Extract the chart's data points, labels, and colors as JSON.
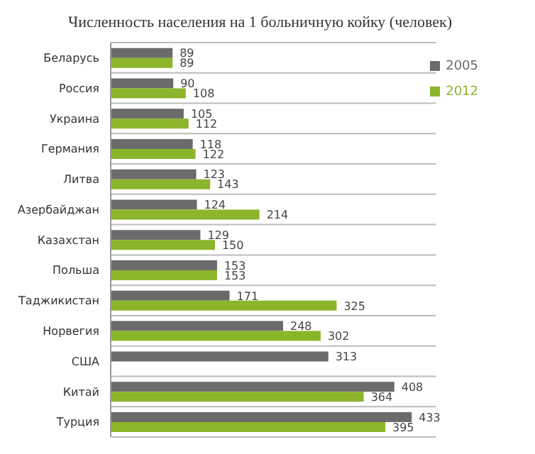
{
  "chart_data": {
    "type": "bar",
    "orientation": "horizontal",
    "title": "Численность населения на 1 больничную койку (человек)",
    "categories": [
      "Беларусь",
      "Россия",
      "Украина",
      "Германия",
      "Литва",
      "Азербайджан",
      "Казахстан",
      "Польша",
      "Таджикистан",
      "Норвегия",
      "США",
      "Китай",
      "Турция"
    ],
    "series": [
      {
        "name": "2005",
        "color": "#6b6b6b",
        "values": [
          89,
          90,
          105,
          118,
          123,
          124,
          129,
          153,
          171,
          248,
          313,
          408,
          433
        ]
      },
      {
        "name": "2012",
        "color": "#8cb52b",
        "values": [
          89,
          108,
          112,
          122,
          143,
          214,
          150,
          153,
          325,
          302,
          null,
          364,
          395
        ]
      }
    ],
    "data_labels": true,
    "grid": "y",
    "legend": "top right"
  }
}
